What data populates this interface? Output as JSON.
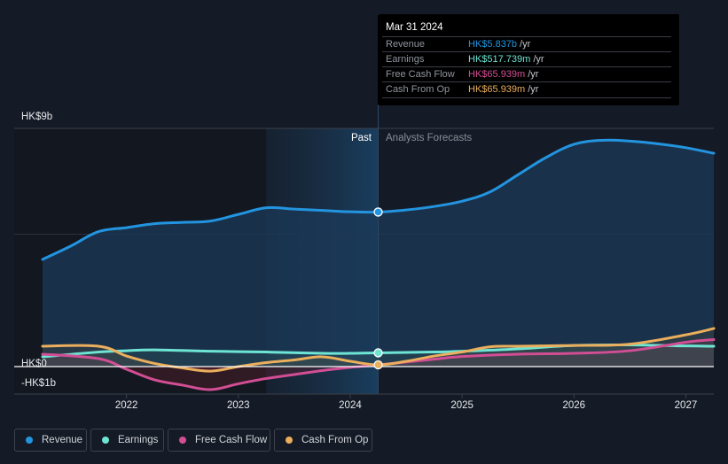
{
  "tooltip": {
    "date": "Mar 31 2024",
    "rows": [
      {
        "label": "Revenue",
        "value": "HK$5.837b",
        "unit": "/yr",
        "color": "#2394df"
      },
      {
        "label": "Earnings",
        "value": "HK$517.739m",
        "unit": "/yr",
        "color": "#6ee5d4"
      },
      {
        "label": "Free Cash Flow",
        "value": "HK$65.939m",
        "unit": "/yr",
        "color": "#d24e94"
      },
      {
        "label": "Cash From Op",
        "value": "HK$65.939m",
        "unit": "/yr",
        "color": "#eaae5c"
      }
    ]
  },
  "sections": {
    "past": "Past",
    "forecast": "Analysts Forecasts"
  },
  "legend": [
    {
      "label": "Revenue",
      "color": "#2394df"
    },
    {
      "label": "Earnings",
      "color": "#6ee5d4"
    },
    {
      "label": "Free Cash Flow",
      "color": "#d24e94"
    },
    {
      "label": "Cash From Op",
      "color": "#eaae5c"
    }
  ],
  "chart_data": {
    "type": "line",
    "title": "",
    "xlabel": "",
    "ylabel": "",
    "currency": "HK$",
    "y_tick_labels": [
      {
        "value": 9,
        "label": "HK$9b"
      },
      {
        "value": 0,
        "label": "HK$0"
      },
      {
        "value": -1,
        "label": "-HK$1b"
      }
    ],
    "gridlines_at": [
      9,
      5,
      0
    ],
    "ylim": [
      -1,
      9
    ],
    "xlim": [
      2021.25,
      2027.25
    ],
    "x_ticks": [
      2022,
      2023,
      2024,
      2025,
      2026,
      2027
    ],
    "past_region": [
      2023.25,
      2024.25
    ],
    "highlight_x": 2024.25,
    "legend_position": "bottom-left",
    "series": [
      {
        "name": "Revenue",
        "unit": "HK$ b",
        "x": [
          2021.25,
          2021.5,
          2021.75,
          2022.0,
          2022.25,
          2022.5,
          2022.75,
          2023.0,
          2023.25,
          2023.5,
          2023.75,
          2024.0,
          2024.25,
          2024.5,
          2024.75,
          2025.0,
          2025.25,
          2025.5,
          2025.75,
          2026.0,
          2026.25,
          2026.5,
          2026.75,
          2027.0,
          2027.25
        ],
        "values": [
          4.05,
          4.55,
          5.1,
          5.25,
          5.4,
          5.45,
          5.5,
          5.75,
          6.0,
          5.95,
          5.9,
          5.85,
          5.84,
          5.92,
          6.05,
          6.25,
          6.6,
          7.25,
          7.9,
          8.4,
          8.55,
          8.52,
          8.42,
          8.27,
          8.06
        ]
      },
      {
        "name": "Earnings",
        "unit": "HK$ b",
        "x": [
          2021.25,
          2021.75,
          2022.0,
          2022.25,
          2022.75,
          2023.25,
          2023.75,
          2024.0,
          2024.25,
          2024.75,
          2025.0,
          2025.5,
          2026.0,
          2026.5,
          2027.0,
          2027.25
        ],
        "values": [
          0.37,
          0.55,
          0.6,
          0.63,
          0.58,
          0.55,
          0.5,
          0.5,
          0.52,
          0.55,
          0.58,
          0.67,
          0.8,
          0.82,
          0.78,
          0.77
        ]
      },
      {
        "name": "Free Cash Flow",
        "unit": "HK$ b",
        "x": [
          2021.25,
          2021.75,
          2022.0,
          2022.25,
          2022.5,
          2022.75,
          2023.0,
          2023.25,
          2023.5,
          2023.75,
          2024.0,
          2024.25,
          2024.75,
          2025.0,
          2025.5,
          2026.0,
          2026.5,
          2027.0,
          2027.25
        ],
        "values": [
          0.47,
          0.3,
          -0.1,
          -0.5,
          -0.7,
          -0.87,
          -0.65,
          -0.45,
          -0.3,
          -0.15,
          -0.03,
          0.066,
          0.28,
          0.38,
          0.47,
          0.5,
          0.6,
          0.92,
          1.02
        ]
      },
      {
        "name": "Cash From Op",
        "unit": "HK$ b",
        "x": [
          2021.25,
          2021.75,
          2022.0,
          2022.25,
          2022.5,
          2022.75,
          2023.0,
          2023.25,
          2023.5,
          2023.75,
          2024.0,
          2024.25,
          2024.5,
          2024.75,
          2025.0,
          2025.25,
          2025.5,
          2026.0,
          2026.5,
          2027.0,
          2027.25
        ],
        "values": [
          0.77,
          0.77,
          0.4,
          0.12,
          -0.05,
          -0.17,
          0.0,
          0.15,
          0.25,
          0.37,
          0.2,
          0.066,
          0.2,
          0.4,
          0.55,
          0.75,
          0.77,
          0.8,
          0.85,
          1.2,
          1.44
        ]
      }
    ]
  }
}
